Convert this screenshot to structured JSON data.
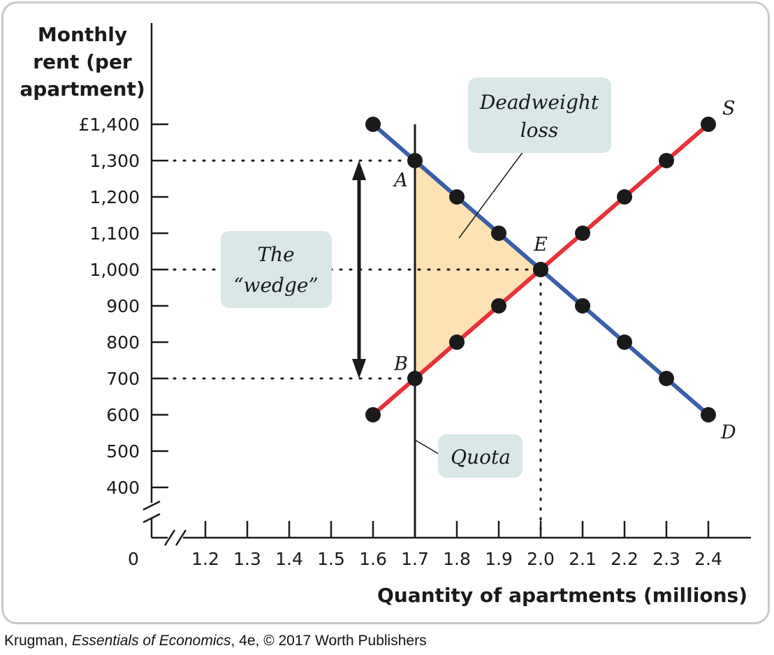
{
  "chart_data": {
    "type": "line",
    "ylabel": [
      "Monthly",
      "rent (per",
      "apartment)"
    ],
    "xlabel": "Quantity of apartments (millions)",
    "y_ticks": [
      400,
      500,
      600,
      700,
      800,
      900,
      1000,
      1100,
      1200,
      1300,
      1400
    ],
    "y_tick_labels": [
      "400",
      "500",
      "600",
      "700",
      "800",
      "900",
      "1,000",
      "1,100",
      "1,200",
      "1,300",
      "£1,400"
    ],
    "x_ticks": [
      1.2,
      1.3,
      1.4,
      1.5,
      1.6,
      1.7,
      1.8,
      1.9,
      2.0,
      2.1,
      2.2,
      2.3,
      2.4
    ],
    "x_tick_labels": [
      "1.2",
      "1.3",
      "1.4",
      "1.5",
      "1.6",
      "1.7",
      "1.8",
      "1.9",
      "2.0",
      "2.1",
      "2.2",
      "2.3",
      "2.4"
    ],
    "origin_label": "0",
    "axis_break": true,
    "series": [
      {
        "name": "D",
        "color": "#3a5fa8",
        "x": [
          1.6,
          1.7,
          1.8,
          1.9,
          2.0,
          2.1,
          2.2,
          2.3,
          2.4
        ],
        "y": [
          1400,
          1300,
          1200,
          1100,
          1000,
          900,
          800,
          700,
          600
        ]
      },
      {
        "name": "S",
        "color": "#e8313a",
        "x": [
          1.6,
          1.7,
          1.8,
          1.9,
          2.0,
          2.1,
          2.2,
          2.3,
          2.4
        ],
        "y": [
          600,
          700,
          800,
          900,
          1000,
          1100,
          1200,
          1300,
          1400
        ]
      }
    ],
    "quota": {
      "x": 1.7,
      "label": "Quota"
    },
    "points": [
      {
        "label": "A",
        "x": 1.7,
        "y": 1300
      },
      {
        "label": "B",
        "x": 1.7,
        "y": 700
      },
      {
        "label": "E",
        "x": 2.0,
        "y": 1000
      }
    ],
    "deadweight_loss": {
      "label": [
        "Deadweight",
        "loss"
      ],
      "vertices": [
        [
          1.7,
          1300
        ],
        [
          1.7,
          700
        ],
        [
          2.0,
          1000
        ]
      ],
      "color": "#fde2b4"
    },
    "wedge": {
      "label": [
        "The",
        "“wedge”"
      ],
      "from": 700,
      "to": 1300
    },
    "box_color": "#d9e8e6"
  },
  "caption": {
    "author": "Krugman, ",
    "title": "Essentials of Economics",
    "rest": ", 4e, © 2017 Worth Publishers"
  }
}
